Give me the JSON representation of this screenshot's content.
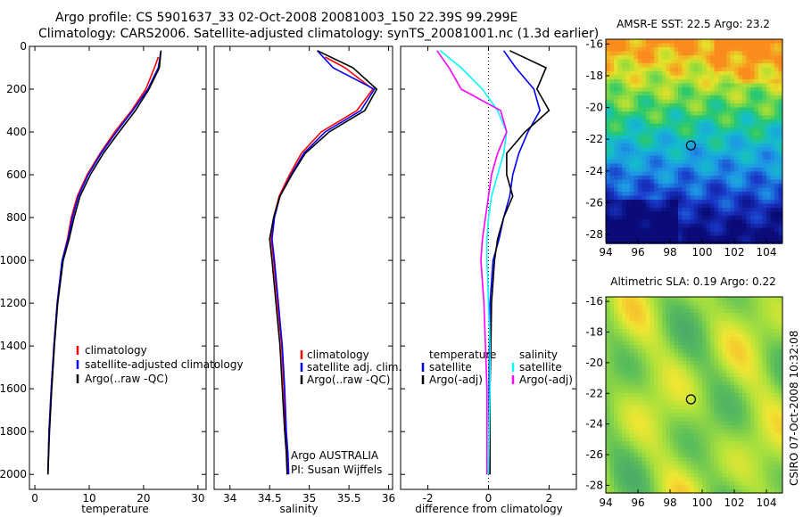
{
  "header": {
    "line1": "Argo profile: CS 5901637_33 02-Oct-2008 20081003_150 22.39S 99.299E",
    "line2": "Climatology: CARS2006. Satellite-adjusted climatology: synTS_20081001.nc (1.3d earlier)"
  },
  "side_stamp": "CSIRO 07-Oct-2008 10:32:08",
  "colors": {
    "climatology": "#ff0000",
    "satellite": "#0000ff",
    "argo": "#000000",
    "cyan": "#00ffff",
    "magenta": "#ff00ff"
  },
  "chart_data": [
    {
      "type": "line",
      "xlabel": "temperature",
      "xlim": [
        -1,
        31.5
      ],
      "xticks": [
        0,
        10,
        20,
        30
      ],
      "ylim": [
        0,
        2070
      ],
      "yticks": [
        0,
        200,
        400,
        600,
        800,
        1000,
        1200,
        1400,
        1600,
        1800,
        2000
      ],
      "y_reversed": true,
      "legend": [
        "climatology",
        "satellite-adjusted climatology",
        "Argo(..raw -QC)"
      ],
      "series": [
        {
          "name": "climatology",
          "color": "#ff0000",
          "x": [
            22.7,
            22.0,
            20.4,
            17.8,
            14.7,
            12.0,
            9.6,
            7.8,
            6.7,
            6.0,
            5.0,
            4.1,
            3.5,
            3.0,
            2.6,
            2.4
          ],
          "y": [
            50,
            100,
            200,
            300,
            400,
            500,
            600,
            700,
            800,
            900,
            1000,
            1200,
            1400,
            1600,
            1800,
            2000
          ]
        },
        {
          "name": "satellite-adjusted climatology",
          "color": "#0000ff",
          "x": [
            23.2,
            22.7,
            20.8,
            18.0,
            15.0,
            12.2,
            9.8,
            8.0,
            6.9,
            6.1,
            5.0,
            4.1,
            3.5,
            3.0,
            2.6,
            2.4
          ],
          "y": [
            20,
            100,
            200,
            300,
            400,
            500,
            600,
            700,
            800,
            900,
            1000,
            1200,
            1400,
            1600,
            1800,
            2000
          ]
        },
        {
          "name": "Argo(..raw -QC)",
          "color": "#000000",
          "x": [
            23.2,
            22.9,
            21.0,
            18.5,
            15.5,
            12.6,
            10.2,
            8.3,
            7.2,
            6.3,
            5.2,
            4.2,
            3.6,
            3.1,
            2.7,
            2.4
          ],
          "y": [
            20,
            100,
            200,
            300,
            400,
            500,
            600,
            700,
            800,
            900,
            1000,
            1200,
            1400,
            1600,
            1800,
            2000
          ]
        }
      ]
    },
    {
      "type": "line",
      "xlabel": "salinity",
      "xlim": [
        33.8,
        36.05
      ],
      "xticks": [
        34,
        34.5,
        35,
        35.5,
        36
      ],
      "ylim": [
        0,
        2070
      ],
      "y_reversed": true,
      "legend": [
        "climatology",
        "satellite adj. clim.",
        "Argo(..raw -QC)"
      ],
      "annotation": [
        "Argo AUSTRALIA",
        "PI: Susan Wijffels"
      ],
      "series": [
        {
          "name": "climatology",
          "color": "#ff0000",
          "x": [
            35.2,
            35.45,
            35.8,
            35.6,
            35.15,
            34.9,
            34.75,
            34.62,
            34.55,
            34.52,
            34.55,
            34.6,
            34.65,
            34.68,
            34.7,
            34.72,
            34.73
          ],
          "y": [
            50,
            100,
            200,
            300,
            400,
            500,
            600,
            700,
            800,
            900,
            1000,
            1200,
            1400,
            1600,
            1800,
            1900,
            2000
          ]
        },
        {
          "name": "satellite adj. clim.",
          "color": "#0000ff",
          "x": [
            35.1,
            35.3,
            35.82,
            35.65,
            35.2,
            34.93,
            34.77,
            34.63,
            34.56,
            34.53,
            34.56,
            34.61,
            34.66,
            34.69,
            34.71,
            34.73,
            34.74
          ],
          "y": [
            20,
            100,
            200,
            300,
            400,
            500,
            600,
            700,
            800,
            900,
            1000,
            1200,
            1400,
            1600,
            1800,
            1900,
            2000
          ]
        },
        {
          "name": "Argo(..raw -QC)",
          "color": "#000000",
          "x": [
            35.1,
            35.55,
            35.85,
            35.7,
            35.25,
            34.95,
            34.78,
            34.63,
            34.55,
            34.5,
            34.53,
            34.58,
            34.63,
            34.66,
            34.69,
            34.71,
            34.72
          ],
          "y": [
            20,
            100,
            200,
            300,
            400,
            500,
            600,
            700,
            800,
            900,
            1000,
            1200,
            1400,
            1600,
            1800,
            1900,
            2000
          ]
        }
      ]
    },
    {
      "type": "line",
      "xlabel": "difference from climatology",
      "xlim": [
        -2.9,
        2.9
      ],
      "xticks": [
        -2,
        0,
        2
      ],
      "ylim": [
        0,
        2070
      ],
      "y_reversed": true,
      "zero_line": true,
      "legend_groups": [
        {
          "title": "temperature",
          "items": [
            "satellite",
            "Argo(-adj)"
          ]
        },
        {
          "title": "salinity",
          "items": [
            "satellite",
            "Argo(-adj)"
          ]
        }
      ],
      "series": [
        {
          "name": "temperature satellite",
          "color": "#0000ff",
          "x": [
            0.5,
            0.9,
            1.5,
            1.7,
            1.3,
            1.0,
            0.8,
            0.7,
            0.5,
            0.35,
            0.15,
            0.05,
            0.03,
            0.02,
            0.02
          ],
          "y": [
            20,
            100,
            200,
            300,
            400,
            500,
            600,
            700,
            800,
            900,
            1000,
            1200,
            1400,
            1600,
            2000
          ]
        },
        {
          "name": "temperature Argo(-adj)",
          "color": "#000000",
          "x": [
            0.7,
            1.9,
            1.6,
            2.0,
            1.2,
            0.6,
            0.6,
            0.8,
            0.5,
            0.3,
            0.2,
            0.1,
            0.08,
            0.05,
            0.05
          ],
          "y": [
            20,
            100,
            200,
            300,
            400,
            500,
            600,
            700,
            800,
            900,
            1000,
            1200,
            1400,
            1600,
            2000
          ]
        },
        {
          "name": "salinity satellite",
          "color": "#00ffff",
          "x": [
            -1.6,
            -0.9,
            -0.2,
            0.3,
            0.6,
            0.5,
            0.3,
            0.1,
            0.0,
            -0.05,
            -0.05,
            0.0,
            0.05,
            0.05,
            0.0
          ],
          "y": [
            20,
            100,
            200,
            300,
            400,
            500,
            600,
            700,
            800,
            900,
            1000,
            1200,
            1400,
            1600,
            2000
          ]
        },
        {
          "name": "salinity Argo(-adj)",
          "color": "#ff00ff",
          "x": [
            -1.7,
            -1.3,
            -0.9,
            0.4,
            0.6,
            0.3,
            0.1,
            0.0,
            -0.1,
            -0.2,
            -0.25,
            -0.15,
            -0.1,
            -0.05,
            -0.05
          ],
          "y": [
            20,
            100,
            200,
            300,
            400,
            500,
            600,
            700,
            800,
            900,
            1000,
            1200,
            1400,
            1600,
            2000
          ]
        }
      ]
    },
    {
      "type": "heatmap",
      "title": "AMSR-E SST: 22.5 Argo: 23.2",
      "xlim": [
        94,
        105
      ],
      "ylim": [
        -28.5,
        -15.7
      ],
      "xticks": [
        94,
        96,
        98,
        100,
        102,
        104
      ],
      "yticks": [
        -16,
        -18,
        -20,
        -22,
        -24,
        -26,
        -28
      ],
      "marker": {
        "lon": 99.3,
        "lat": -22.39
      }
    },
    {
      "type": "heatmap",
      "title": "Altimetric SLA: 0.19 Argo: 0.22",
      "xlim": [
        94,
        105
      ],
      "ylim": [
        -28.5,
        -15.7
      ],
      "xticks": [
        94,
        96,
        98,
        100,
        102,
        104
      ],
      "yticks": [
        -16,
        -18,
        -20,
        -22,
        -24,
        -26,
        -28
      ],
      "marker": {
        "lon": 99.3,
        "lat": -22.39
      }
    }
  ]
}
